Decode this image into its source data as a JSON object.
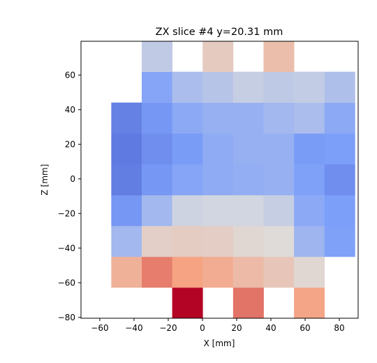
{
  "chart_data": {
    "type": "heatmap",
    "title": "ZX slice #4 y=20.31 mm",
    "xlabel": "X [mm]",
    "ylabel": "Z [mm]",
    "xlim": [
      -71,
      91
    ],
    "ylim": [
      -80.5,
      79.5
    ],
    "x_ticks": [
      -60,
      -40,
      -20,
      0,
      20,
      40,
      60,
      80
    ],
    "y_ticks": [
      -80,
      -60,
      -40,
      -20,
      0,
      20,
      40,
      60
    ],
    "cell_width": 17.8,
    "cell_height": 17.8,
    "x_centers": [
      -44.4,
      -26.6,
      -8.8,
      9.0,
      26.8,
      44.6,
      62.4,
      80.2
    ],
    "z_centers": [
      -71.6,
      -53.8,
      -36.0,
      -18.2,
      -0.4,
      17.4,
      35.2,
      53.0,
      70.8
    ],
    "colormap": "coolwarm",
    "vmin": -1,
    "vmax": 1,
    "grid": false,
    "values": [
      [
        null,
        null,
        1.0,
        null,
        0.65,
        null,
        0.48,
        null
      ],
      [
        0.38,
        0.62,
        0.5,
        0.42,
        0.3,
        0.2,
        0.06,
        null
      ],
      [
        -0.3,
        0.12,
        0.15,
        0.14,
        0.06,
        0.02,
        -0.32,
        -0.48
      ],
      [
        -0.55,
        -0.3,
        -0.08,
        -0.06,
        -0.06,
        -0.12,
        -0.42,
        -0.5
      ],
      [
        -0.7,
        -0.55,
        -0.45,
        -0.4,
        -0.38,
        -0.36,
        -0.48,
        -0.6
      ],
      [
        -0.72,
        -0.6,
        -0.52,
        -0.4,
        -0.36,
        -0.36,
        -0.52,
        -0.5
      ],
      [
        -0.68,
        -0.55,
        -0.42,
        -0.36,
        -0.36,
        -0.3,
        -0.26,
        -0.42
      ],
      [
        null,
        -0.45,
        -0.26,
        -0.2,
        -0.12,
        -0.16,
        -0.14,
        -0.24
      ],
      [
        null,
        -0.15,
        null,
        0.16,
        null,
        0.28,
        null,
        null
      ]
    ]
  }
}
